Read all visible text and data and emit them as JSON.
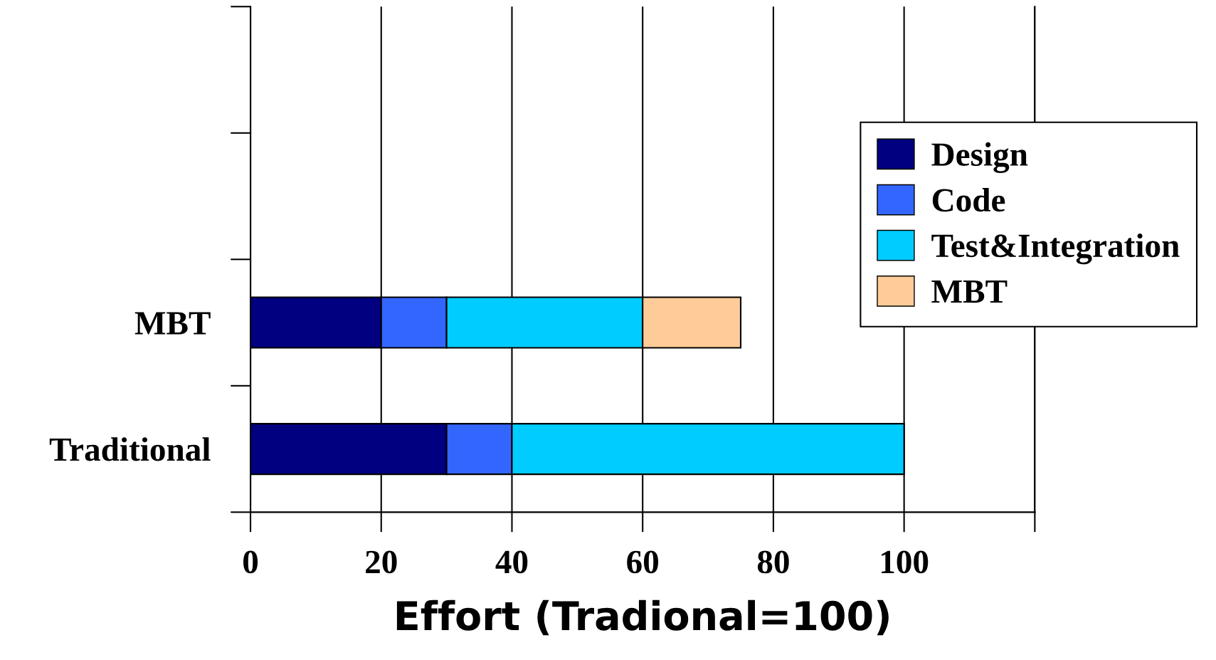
{
  "chart_data": {
    "type": "bar",
    "orientation": "horizontal",
    "stacked": true,
    "categories": [
      null,
      null,
      "MBT",
      "Traditional"
    ],
    "series": [
      {
        "name": "Design",
        "color": "#000080",
        "values": [
          null,
          null,
          20,
          30
        ]
      },
      {
        "name": "Code",
        "color": "#3366ff",
        "values": [
          null,
          null,
          10,
          10
        ]
      },
      {
        "name": "Test&Integration",
        "color": "#00ccff",
        "values": [
          null,
          null,
          30,
          60
        ]
      },
      {
        "name": "MBT",
        "color": "#ffcc99",
        "values": [
          null,
          null,
          15,
          null
        ]
      }
    ],
    "xlabel": "Effort (Tradional=100)",
    "xlim": [
      0,
      120
    ],
    "xticks": [
      0,
      20,
      40,
      60,
      80,
      100,
      {
        "value": 120,
        "label": null
      }
    ],
    "grid": "x",
    "legend": "right"
  }
}
